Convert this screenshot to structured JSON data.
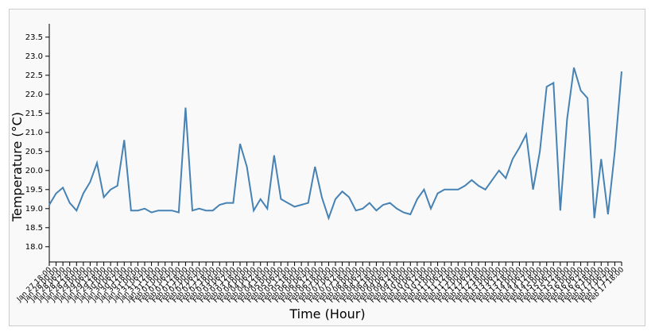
{
  "chart_data": {
    "type": "line",
    "x_label": "Time (Hour)",
    "y_label": "Temperature (°C)",
    "categories": [
      "Jan 27 18:00",
      "Jan 28 00:00",
      "Jan 28 06:00",
      "Jan 28 12:00",
      "Jan 28 18:00",
      "Jan 29 00:00",
      "Jan 29 06:00",
      "Jan 29 12:00",
      "Jan 29 18:00",
      "Jan 30 00:00",
      "Jan 30 06:00",
      "Jan 30 12:00",
      "Jan 30 18:00",
      "Jan 31 00:00",
      "Jan 31 06:00",
      "Jan 31 12:00",
      "Jan 31 18:00",
      "Feb 01 00:00",
      "Feb 01 06:00",
      "Feb 01 12:00",
      "Feb 01 18:00",
      "Feb 02 00:00",
      "Feb 02 06:00",
      "Feb 02 12:00",
      "Feb 02 18:00",
      "Feb 03 00:00",
      "Feb 03 06:00",
      "Feb 03 12:00",
      "Feb 03 18:00",
      "Feb 04 00:00",
      "Feb 04 06:00",
      "Feb 04 12:00",
      "Feb 04 18:00",
      "Feb 05 00:00",
      "Feb 05 06:00",
      "Feb 05 12:00",
      "Feb 05 18:00",
      "Feb 06 00:00",
      "Feb 06 06:00",
      "Feb 06 12:00",
      "Feb 06 18:00",
      "Feb 07 00:00",
      "Feb 07 06:00",
      "Feb 07 12:00",
      "Feb 07 18:00",
      "Feb 08 00:00",
      "Feb 08 06:00",
      "Feb 08 12:00",
      "Feb 08 18:00",
      "Feb 09 00:00",
      "Feb 09 06:00",
      "Feb 09 12:00",
      "Feb 09 18:00",
      "Feb 10 00:00",
      "Feb 10 06:00",
      "Feb 10 12:00",
      "Feb 10 18:00",
      "Feb 11 00:00",
      "Feb 11 06:00",
      "Feb 11 12:00",
      "Feb 11 18:00",
      "Feb 12 00:00",
      "Feb 12 06:00",
      "Feb 12 12:00",
      "Feb 12 18:00",
      "Feb 13 00:00",
      "Feb 13 06:00",
      "Feb 13 12:00",
      "Feb 13 18:00",
      "Feb 14 00:00",
      "Feb 14 06:00",
      "Feb 14 12:00",
      "Feb 14 18:00",
      "Feb 15 00:00",
      "Feb 15 06:00",
      "Feb 15 12:00",
      "Feb 15 18:00",
      "Feb 16 00:00",
      "Feb 16 06:00",
      "Feb 16 12:00",
      "Feb 16 18:00",
      "Feb 17 00:00",
      "Feb 17 06:00",
      "Feb 17 12:00",
      "Feb 17 18:00"
    ],
    "values": [
      19.1,
      19.4,
      19.55,
      19.15,
      18.95,
      19.4,
      19.7,
      20.2,
      19.3,
      19.5,
      19.6,
      20.8,
      18.95,
      18.95,
      19.0,
      18.9,
      18.95,
      18.95,
      18.95,
      18.9,
      21.65,
      18.95,
      19.0,
      18.95,
      18.95,
      19.1,
      19.15,
      19.15,
      20.7,
      20.1,
      18.95,
      19.25,
      19.0,
      20.4,
      19.25,
      19.15,
      19.05,
      19.1,
      19.15,
      20.1,
      19.3,
      18.75,
      19.25,
      19.45,
      19.3,
      18.95,
      19.0,
      19.15,
      18.95,
      19.1,
      19.15,
      19.0,
      18.9,
      18.85,
      19.25,
      19.5,
      19.0,
      19.4,
      19.5,
      19.5,
      19.5,
      19.6,
      19.75,
      19.6,
      19.5,
      19.75,
      20.0,
      19.8,
      20.3,
      20.6,
      20.95,
      19.5,
      20.5,
      22.2,
      22.3,
      18.95,
      21.35,
      22.7,
      22.1,
      21.9,
      18.75,
      20.3,
      18.85,
      20.5,
      22.6
    ],
    "color": "#4682b4",
    "ylim": [
      17.6,
      23.85
    ],
    "yticks": [
      {
        "value": 18,
        "label": "18.0"
      },
      {
        "value": 18.5,
        "label": "18.5"
      },
      {
        "value": 19,
        "label": "19.0"
      },
      {
        "value": 19.5,
        "label": "19.5"
      },
      {
        "value": 20,
        "label": "20.0"
      },
      {
        "value": 20.5,
        "label": "20.5"
      },
      {
        "value": 21,
        "label": "21.0"
      },
      {
        "value": 21.5,
        "label": "21.5"
      },
      {
        "value": 22,
        "label": "22.0"
      },
      {
        "value": 22.5,
        "label": "22.5"
      },
      {
        "value": 23,
        "label": "23.0"
      },
      {
        "value": 23.5,
        "label": "23.5"
      }
    ],
    "grid": false
  }
}
